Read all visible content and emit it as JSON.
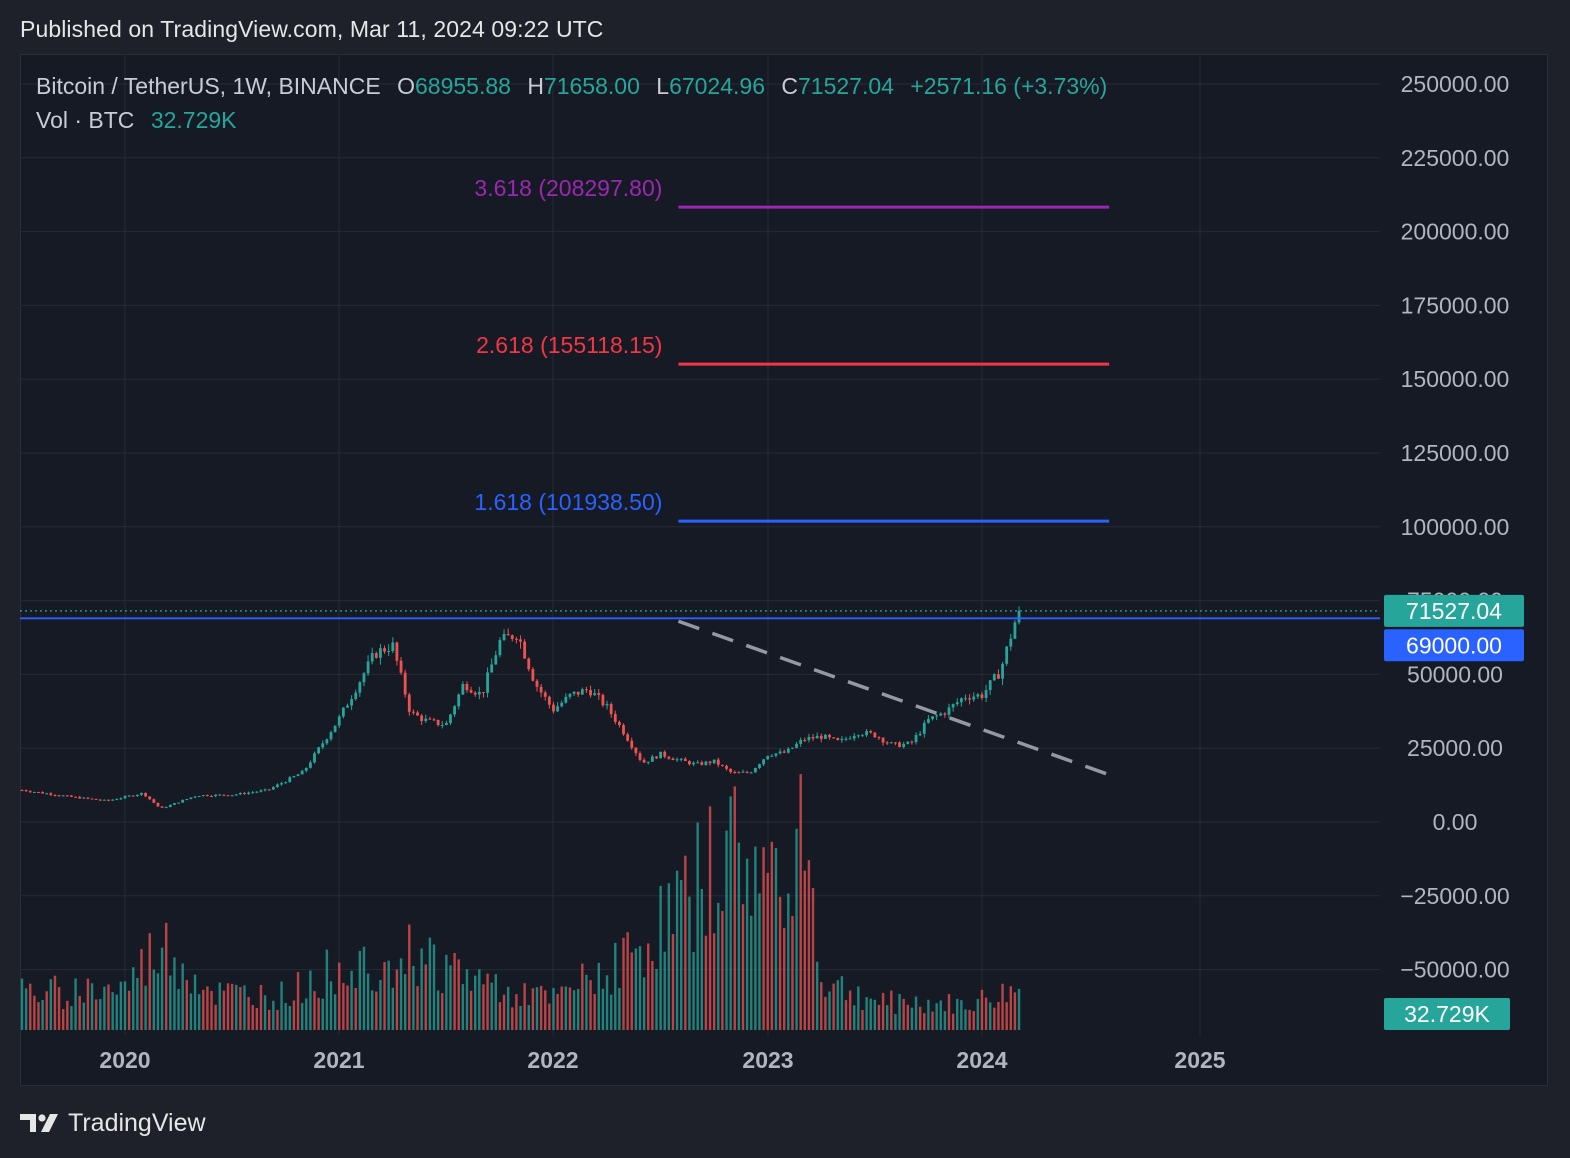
{
  "header": {
    "published": "Published on TradingView.com, Mar 11, 2024 09:22 UTC"
  },
  "legend": {
    "symbol": "Bitcoin / TetherUS, 1W, BINANCE",
    "open_label": "O",
    "open": "68955.88",
    "high_label": "H",
    "high": "71658.00",
    "low_label": "L",
    "low": "67024.96",
    "close_label": "C",
    "close": "71527.04",
    "change": "+2571.16 (+3.73%)",
    "vol_label": "Vol · BTC",
    "vol_value": "32.729K"
  },
  "footer": {
    "brand": "TradingView",
    "logo_icon": "tradingview-logo-icon"
  },
  "colors": {
    "background": "#161a25",
    "grid": "#262a35",
    "up": "#26a69a",
    "down": "#ef5350",
    "fib_1618": "#2962ff",
    "fib_2618": "#f23645",
    "fib_3618": "#9c27b0",
    "level_line": "#2962ff",
    "trendline": "#9598a1"
  },
  "chart_data": {
    "type": "candlestick",
    "timeframe": "1W",
    "x_axis": {
      "ticks": [
        "2020",
        "2021",
        "2022",
        "2023",
        "2024",
        "2025"
      ]
    },
    "y_axis": {
      "range": [
        -60000,
        255000
      ],
      "ticks": [
        "250000.00",
        "225000.00",
        "200000.00",
        "175000.00",
        "150000.00",
        "125000.00",
        "100000.00",
        "75000.00",
        "50000.00",
        "25000.00",
        "0.00",
        "−25000.00",
        "−50000.00"
      ],
      "tick_values": [
        250000,
        225000,
        200000,
        175000,
        150000,
        125000,
        100000,
        75000,
        50000,
        25000,
        0,
        -25000,
        -50000
      ]
    },
    "last_price": {
      "value": 71527.04,
      "label": "71527.04"
    },
    "horizontal_level": {
      "value": 69000,
      "label": "69000.00"
    },
    "volume_label": "32.729K",
    "fib_levels": [
      {
        "ratio": "1.618",
        "value": 101938.5,
        "label": "1.618 (101938.50)",
        "start": "2022-08",
        "end": "2024-08"
      },
      {
        "ratio": "2.618",
        "value": 155118.15,
        "label": "2.618 (155118.15)",
        "start": "2022-08",
        "end": "2024-08"
      },
      {
        "ratio": "3.618",
        "value": 208297.8,
        "label": "3.618 (208297.80)",
        "start": "2022-08",
        "end": "2024-08"
      }
    ],
    "trendline": {
      "from": {
        "date": "2022-08",
        "price": 68000
      },
      "to": {
        "date": "2024-08",
        "price": 16000
      },
      "style": "dashed"
    },
    "price_path": [
      [
        "2019-07",
        11000
      ],
      [
        "2019-10",
        8500
      ],
      [
        "2019-12",
        7200
      ],
      [
        "2020-02",
        9800
      ],
      [
        "2020-03",
        4500
      ],
      [
        "2020-05",
        9000
      ],
      [
        "2020-07",
        9200
      ],
      [
        "2020-09",
        10800
      ],
      [
        "2020-11",
        17000
      ],
      [
        "2020-12",
        26000
      ],
      [
        "2021-01",
        35000
      ],
      [
        "2021-02",
        46000
      ],
      [
        "2021-03",
        57000
      ],
      [
        "2021-04",
        60000
      ],
      [
        "2021-05",
        37000
      ],
      [
        "2021-06",
        34000
      ],
      [
        "2021-07",
        33000
      ],
      [
        "2021-08",
        47000
      ],
      [
        "2021-09",
        43000
      ],
      [
        "2021-10",
        61000
      ],
      [
        "2021-11",
        64000
      ],
      [
        "2021-12",
        47000
      ],
      [
        "2022-01",
        38000
      ],
      [
        "2022-02",
        43000
      ],
      [
        "2022-03",
        45000
      ],
      [
        "2022-04",
        39000
      ],
      [
        "2022-05",
        30000
      ],
      [
        "2022-06",
        20000
      ],
      [
        "2022-07",
        23000
      ],
      [
        "2022-08",
        21000
      ],
      [
        "2022-09",
        19500
      ],
      [
        "2022-10",
        20500
      ],
      [
        "2022-11",
        16500
      ],
      [
        "2022-12",
        16800
      ],
      [
        "2023-01",
        23000
      ],
      [
        "2023-02",
        23500
      ],
      [
        "2023-03",
        28000
      ],
      [
        "2023-04",
        29000
      ],
      [
        "2023-05",
        27000
      ],
      [
        "2023-06",
        30500
      ],
      [
        "2023-07",
        29500
      ],
      [
        "2023-08",
        26000
      ],
      [
        "2023-09",
        26500
      ],
      [
        "2023-10",
        34500
      ],
      [
        "2023-11",
        37500
      ],
      [
        "2023-12",
        42500
      ],
      [
        "2024-01",
        43000
      ],
      [
        "2024-02",
        51000
      ],
      [
        "2024-03",
        71527
      ]
    ],
    "volume_path": [
      [
        "2019-07",
        1.5
      ],
      [
        "2020-01",
        1.7
      ],
      [
        "2020-03",
        3.5
      ],
      [
        "2020-06",
        1.5
      ],
      [
        "2020-10",
        1.4
      ],
      [
        "2021-01",
        2.6
      ],
      [
        "2021-05",
        3.2
      ],
      [
        "2021-09",
        2.0
      ],
      [
        "2022-01",
        1.2
      ],
      [
        "2022-06",
        3.4
      ],
      [
        "2022-09",
        6.0
      ],
      [
        "2022-11",
        7.5
      ],
      [
        "2023-01",
        6.0
      ],
      [
        "2023-03",
        8.8
      ],
      [
        "2023-04",
        2.0
      ],
      [
        "2023-07",
        1.2
      ],
      [
        "2023-12",
        1.0
      ],
      [
        "2024-03",
        1.6
      ]
    ],
    "volume_unit": "100K BTC"
  }
}
